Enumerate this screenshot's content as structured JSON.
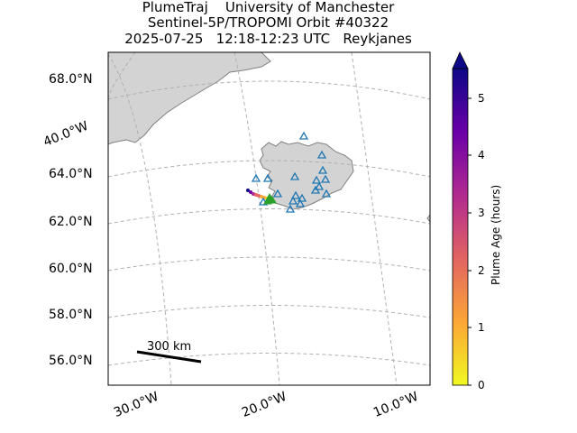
{
  "title": {
    "line1": "PlumeTraj    University of Manchester",
    "line2": "Sentinel-5P/TROPOMI Orbit #40322",
    "line3": "2025-07-25   12:18-12:23 UTC   Reykjanes"
  },
  "map": {
    "lat_labels": [
      "68.0°N",
      "64.0°N",
      "62.0°N",
      "60.0°N",
      "58.0°N",
      "56.0°N"
    ],
    "lon_labels": [
      "40.0°W",
      "30.0°W",
      "20.0°W",
      "10.0°W"
    ],
    "scale_bar_label": "300 km",
    "land_color": "#d3d3d3",
    "coast_color": "#808080",
    "station_marker_color": "#1f77b4"
  },
  "colorbar": {
    "label": "Plume Age (hours)",
    "ticks": [
      "0",
      "1",
      "2",
      "3",
      "4",
      "5"
    ],
    "min": 0,
    "max": 5.5,
    "colormap": "plasma_r"
  }
}
